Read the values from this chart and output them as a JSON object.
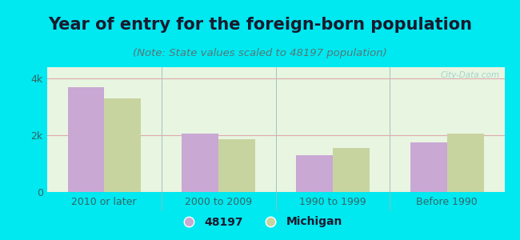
{
  "title": "Year of entry for the foreign-born population",
  "subtitle": "(Note: State values scaled to 48197 population)",
  "categories": [
    "2010 or later",
    "2000 to 2009",
    "1990 to 1999",
    "Before 1990"
  ],
  "values_48197": [
    3700,
    2050,
    1300,
    1750
  ],
  "values_michigan": [
    3300,
    1850,
    1550,
    2050
  ],
  "bar_color_48197": "#c9a8d4",
  "bar_color_michigan": "#c8d4a0",
  "background_outer": "#00e8f0",
  "background_inner": "#e8f5e0",
  "title_fontsize": 15,
  "subtitle_fontsize": 9.5,
  "ylabel_ticks": [
    0,
    2000,
    4000
  ],
  "ylabel_labels": [
    "0",
    "2k",
    "4k"
  ],
  "ylim": [
    0,
    4400
  ],
  "legend_labels": [
    "48197",
    "Michigan"
  ],
  "bar_width": 0.32,
  "watermark": "City-Data.com"
}
